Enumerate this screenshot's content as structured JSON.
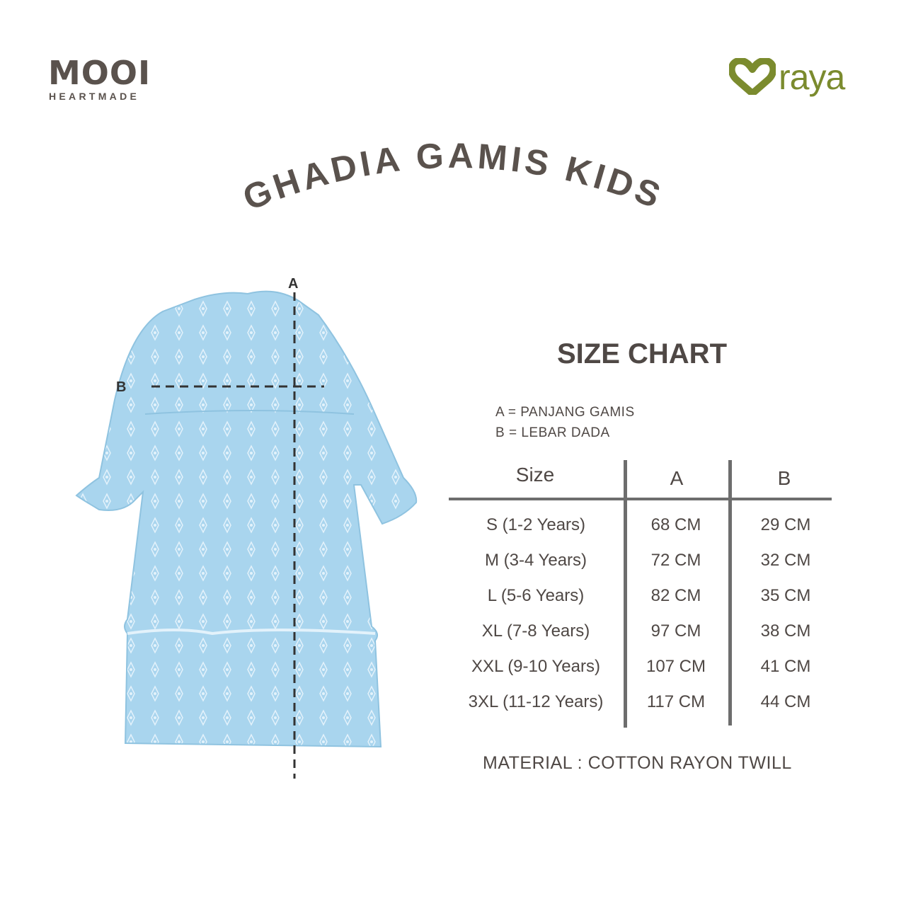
{
  "brand": {
    "logo_main": "MOOI",
    "logo_sub": "HEARTMADE",
    "partner_logo": "raya",
    "brand_color": "#5a524d",
    "partner_color": "#7b8b2e"
  },
  "title": "GHADIA GAMIS KIDS",
  "diagram": {
    "label_a": "A",
    "label_b": "B",
    "dress_color": "#a9d5ee"
  },
  "size_chart": {
    "heading": "SIZE CHART",
    "legend": [
      "A = PANJANG GAMIS",
      "B = LEBAR DADA"
    ],
    "columns": [
      "Size",
      "A",
      "B"
    ],
    "rows": [
      [
        "S (1-2 Years)",
        "68 CM",
        "29 CM"
      ],
      [
        "M (3-4 Years)",
        "72 CM",
        "32 CM"
      ],
      [
        "L (5-6 Years)",
        "82 CM",
        "35 CM"
      ],
      [
        "XL (7-8 Years)",
        "97 CM",
        "38 CM"
      ],
      [
        "XXL (9-10 Years)",
        "107 CM",
        "41 CM"
      ],
      [
        "3XL (11-12 Years)",
        "117 CM",
        "44 CM"
      ]
    ],
    "material": "MATERIAL : COTTON RAYON TWILL"
  }
}
